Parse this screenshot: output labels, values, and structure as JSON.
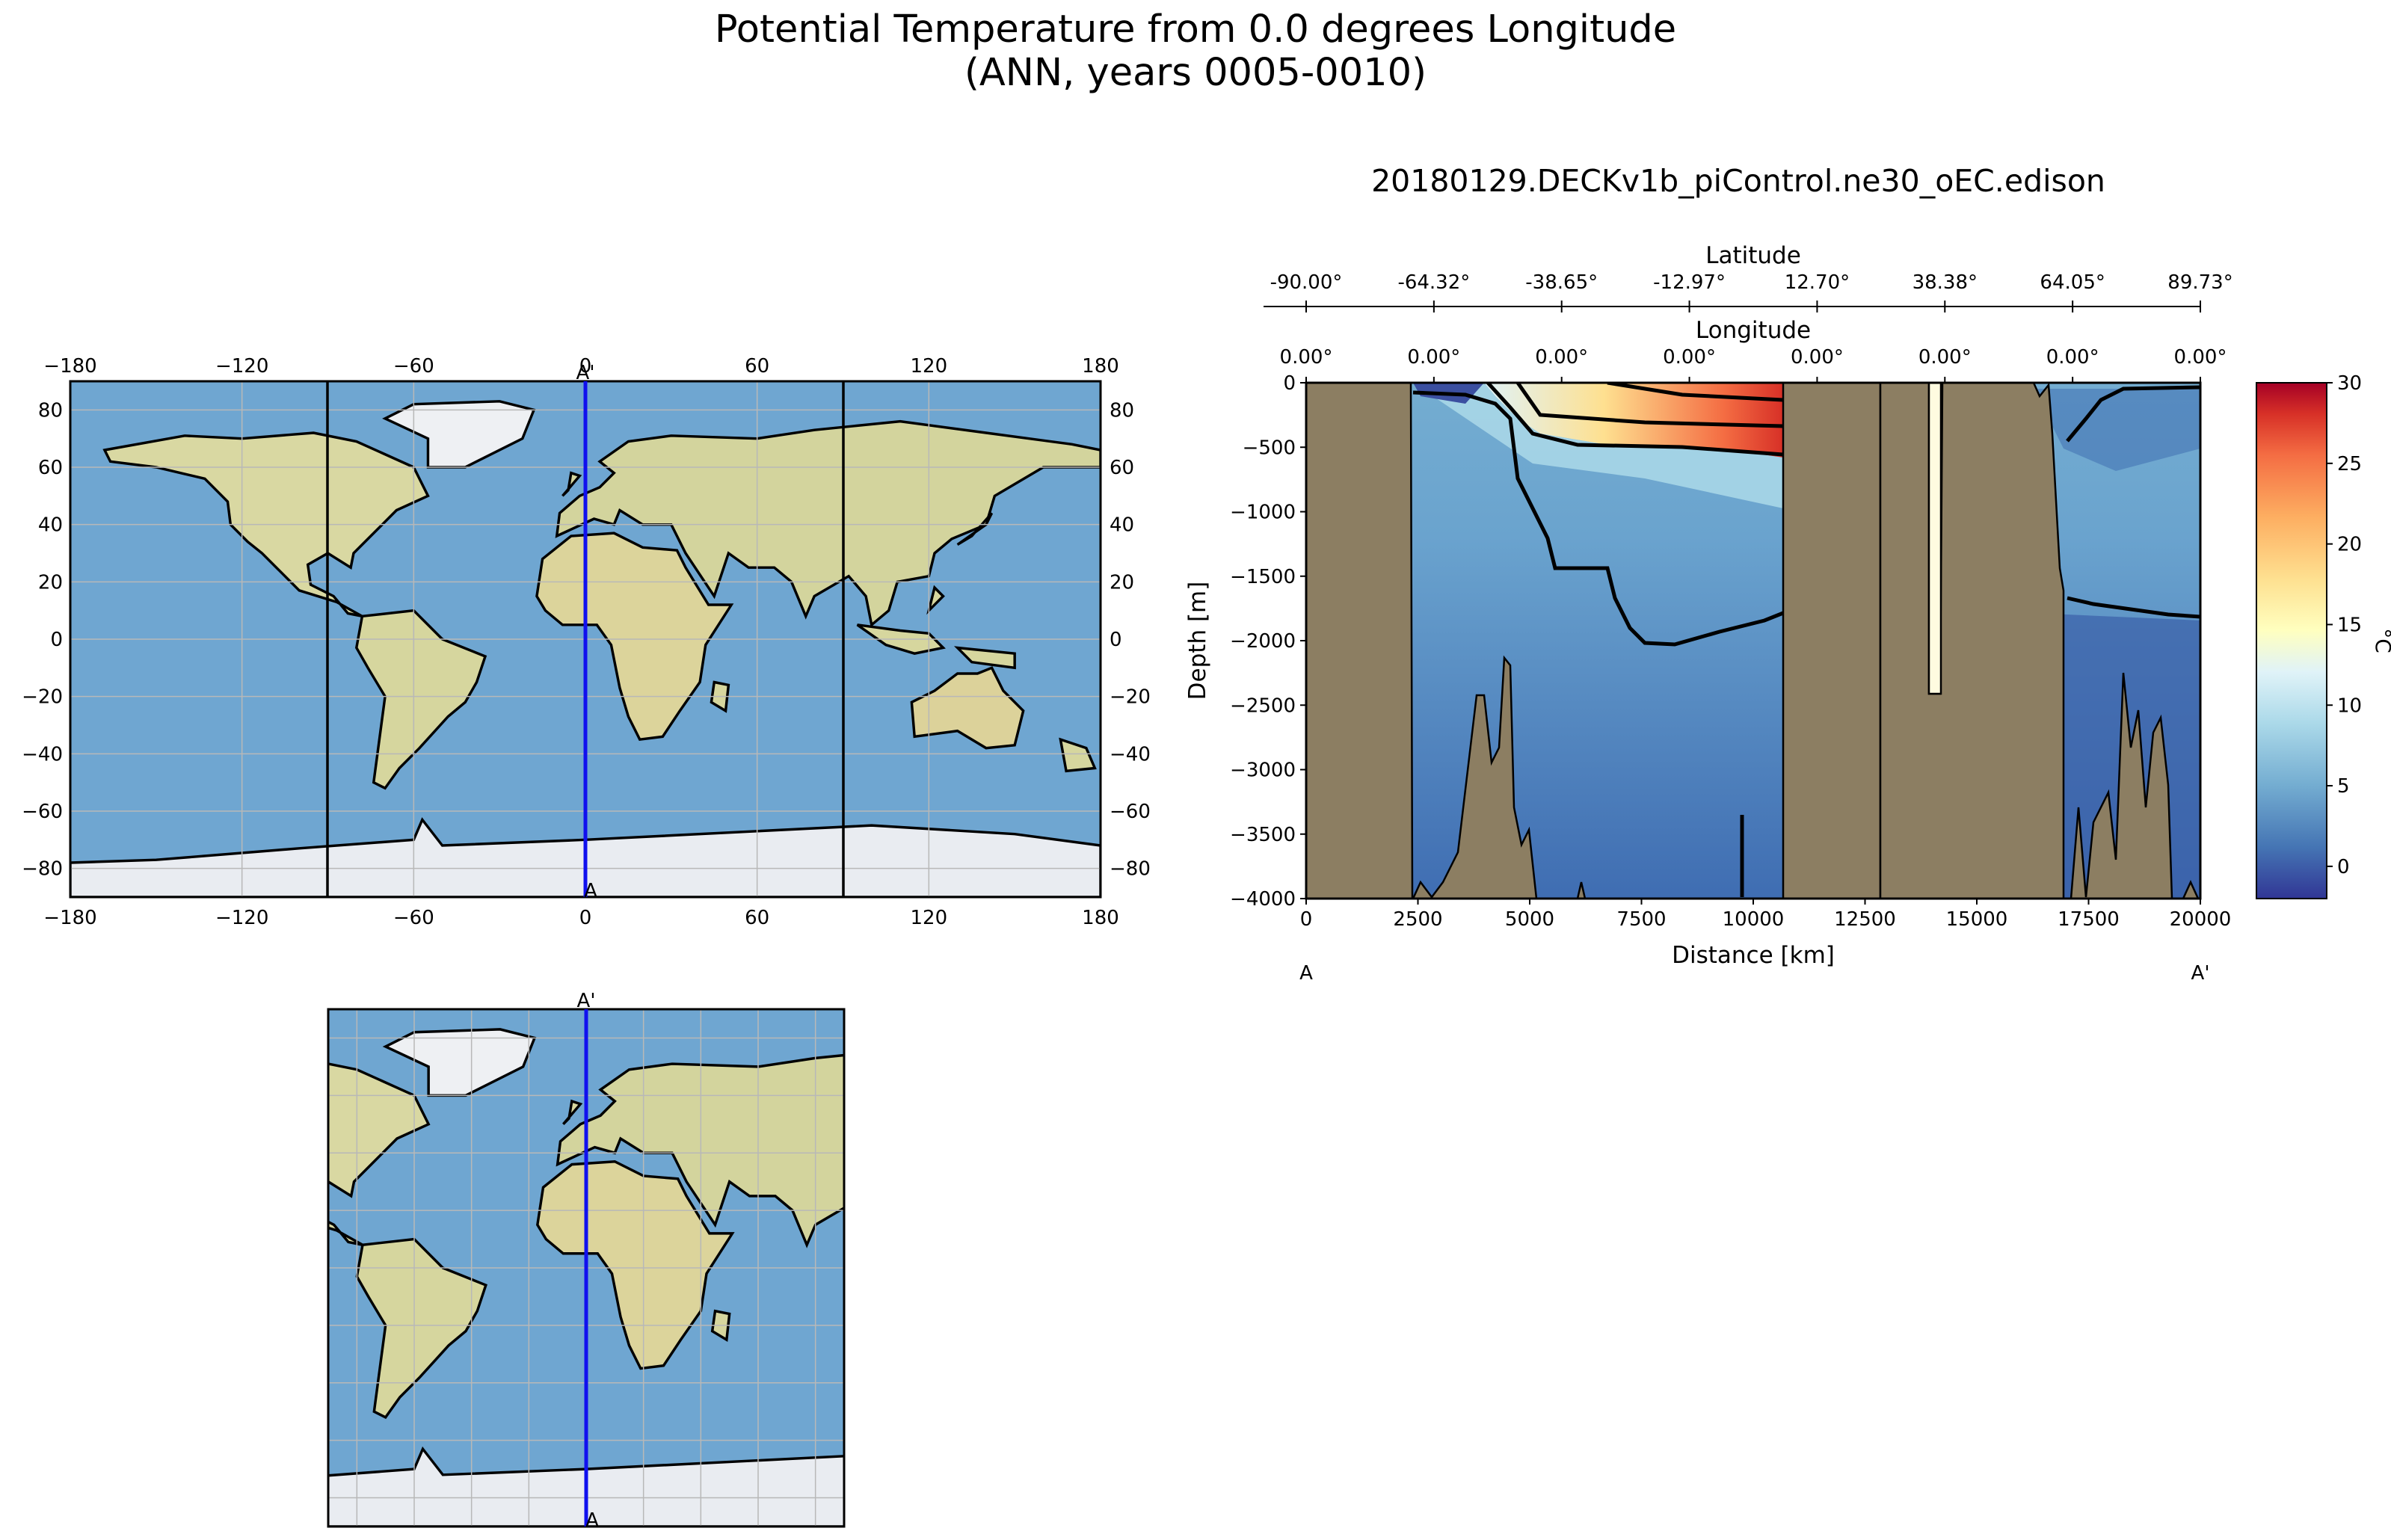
{
  "figure": {
    "title_line1": "Potential Temperature from 0.0 degrees Longitude",
    "title_line2": "(ANN, years 0005-0010)",
    "run_name": "20180129.DECKv1b_piControl.ne30_oEC.edison"
  },
  "colors": {
    "ocean": "#6fa6d1",
    "land": "#d9d8a2",
    "ice": "#e9ecf1",
    "transect": "#1010ee",
    "seafloor": "#8c7e62"
  },
  "chart_data": [
    {
      "id": "global-map",
      "type": "map",
      "projection": "PlateCarree",
      "lon_ticks": [
        -180,
        -120,
        -60,
        0,
        60,
        120,
        180
      ],
      "lat_ticks": [
        80,
        60,
        40,
        20,
        0,
        -20,
        -40,
        -60,
        -80
      ],
      "xlim": [
        -180,
        180
      ],
      "ylim": [
        -90,
        90
      ],
      "section_longitude": 0,
      "section_label_top": "A'",
      "section_label_bottom": "A",
      "inset_box_lon": [
        -90,
        90
      ]
    },
    {
      "id": "zoom-map",
      "type": "map",
      "xlim": [
        -90,
        90
      ],
      "ylim": [
        -90,
        90
      ],
      "section_longitude": 0,
      "section_label_top": "A'",
      "section_label_bottom": "A"
    },
    {
      "id": "transect",
      "type": "heatmap",
      "variable": "Potential Temperature",
      "xlabel": "Distance [km]",
      "ylabel": "Depth [m]",
      "xlim": [
        0,
        20000
      ],
      "ylim": [
        -4000,
        0
      ],
      "x_ticks": [
        0,
        2500,
        5000,
        7500,
        10000,
        12500,
        15000,
        17500,
        20000
      ],
      "y_ticks": [
        0,
        -500,
        -1000,
        -1500,
        -2000,
        -2500,
        -3000,
        -3500,
        -4000
      ],
      "x_end_labels": [
        "A",
        "A'"
      ],
      "latitude_axis_label": "Latitude",
      "latitude_ticks": [
        "-90.00°",
        "-64.32°",
        "-38.65°",
        "-12.97°",
        "12.70°",
        "38.38°",
        "64.05°",
        "89.73°"
      ],
      "longitude_axis_label": "Longitude",
      "longitude_ticks": [
        "0.00°",
        "0.00°",
        "0.00°",
        "0.00°",
        "0.00°",
        "0.00°",
        "0.00°",
        "0.00°"
      ],
      "colorbar": {
        "label": "°C",
        "vmin": -2,
        "vmax": 30,
        "ticks": [
          0,
          5,
          10,
          15,
          20,
          25,
          30
        ],
        "colormap": "RdYlBu_r"
      },
      "contour_levels": [
        3,
        5,
        10,
        15,
        20,
        25
      ],
      "land_segments_km": [
        [
          0,
          2300
        ],
        [
          10600,
          16900
        ]
      ],
      "surface_max_c": 27
    }
  ]
}
